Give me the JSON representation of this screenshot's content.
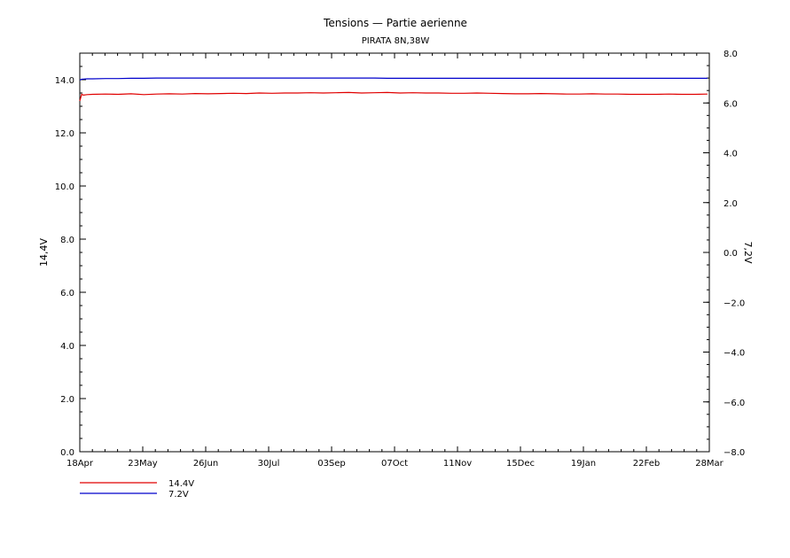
{
  "chart_data": {
    "type": "line",
    "title": "Tensions  —  Partie aerienne",
    "subtitle": "PIRATA 8N,38W",
    "xlabel": "",
    "ylabel_left": "14,4V",
    "ylabel_right": "7,2V",
    "x_ticks": [
      "18Apr",
      "23May",
      "26Jun",
      "30Jul",
      "03Sep",
      "07Oct",
      "11Nov",
      "15Dec",
      "19Jan",
      "22Feb",
      "28Mar"
    ],
    "ylim_left": [
      0,
      15
    ],
    "ylim_right": [
      -8,
      8
    ],
    "y_ticks_left": [
      "0.0",
      "2.0",
      "4.0",
      "6.0",
      "8.0",
      "10.0",
      "12.0",
      "14.0"
    ],
    "y_ticks_right": [
      "−8.0",
      "−6.0",
      "−4.0",
      "−2.0",
      "0.0",
      "2.0",
      "4.0",
      "6.0",
      "8.0"
    ],
    "grid": false,
    "legend_position": "bottom-left",
    "series": [
      {
        "name": "14.4V",
        "axis": "left",
        "color": "#e00000",
        "x_days": [
          0,
          1,
          2,
          4,
          7,
          14,
          21,
          28,
          35,
          42,
          49,
          56,
          63,
          70,
          77,
          84,
          91,
          98,
          105,
          112,
          119,
          126,
          133,
          140,
          147,
          154,
          161,
          168,
          175,
          182,
          189,
          196,
          203,
          210,
          217,
          224,
          231,
          238,
          245,
          252,
          259,
          266,
          273,
          280,
          287,
          294,
          301,
          308,
          315,
          322,
          329,
          336,
          343
        ],
        "values": [
          13.2,
          13.45,
          13.42,
          13.44,
          13.45,
          13.46,
          13.45,
          13.47,
          13.44,
          13.46,
          13.47,
          13.46,
          13.48,
          13.47,
          13.48,
          13.49,
          13.48,
          13.5,
          13.49,
          13.5,
          13.5,
          13.51,
          13.5,
          13.51,
          13.52,
          13.5,
          13.51,
          13.52,
          13.5,
          13.51,
          13.5,
          13.5,
          13.49,
          13.49,
          13.5,
          13.49,
          13.48,
          13.47,
          13.47,
          13.48,
          13.47,
          13.46,
          13.46,
          13.47,
          13.46,
          13.46,
          13.45,
          13.45,
          13.45,
          13.46,
          13.45,
          13.45,
          13.46
        ]
      },
      {
        "name": "7.2V",
        "axis": "right",
        "color": "#0000cc",
        "x_days": [
          0,
          1,
          2,
          4,
          7,
          14,
          21,
          28,
          35,
          42,
          49,
          56,
          63,
          70,
          77,
          84,
          91,
          98,
          105,
          112,
          119,
          126,
          133,
          140,
          147,
          154,
          161,
          168,
          175,
          182,
          189,
          196,
          203,
          210,
          217,
          224,
          231,
          238,
          245,
          252,
          259,
          266,
          273,
          280,
          287,
          294,
          301,
          308,
          315,
          322,
          329,
          336,
          343
        ],
        "values": [
          6.92,
          6.95,
          6.96,
          6.97,
          6.97,
          6.98,
          6.98,
          6.99,
          6.99,
          7.0,
          7.0,
          7.0,
          7.0,
          7.0,
          7.0,
          7.0,
          7.0,
          7.0,
          7.0,
          7.0,
          7.0,
          7.0,
          7.0,
          7.0,
          7.0,
          7.0,
          7.0,
          6.99,
          6.99,
          6.99,
          6.99,
          6.99,
          6.99,
          6.99,
          6.99,
          6.99,
          6.99,
          6.99,
          6.99,
          6.99,
          6.99,
          6.99,
          6.99,
          6.99,
          6.99,
          6.99,
          6.99,
          6.99,
          6.99,
          6.99,
          6.99,
          6.99,
          6.99
        ]
      }
    ]
  }
}
